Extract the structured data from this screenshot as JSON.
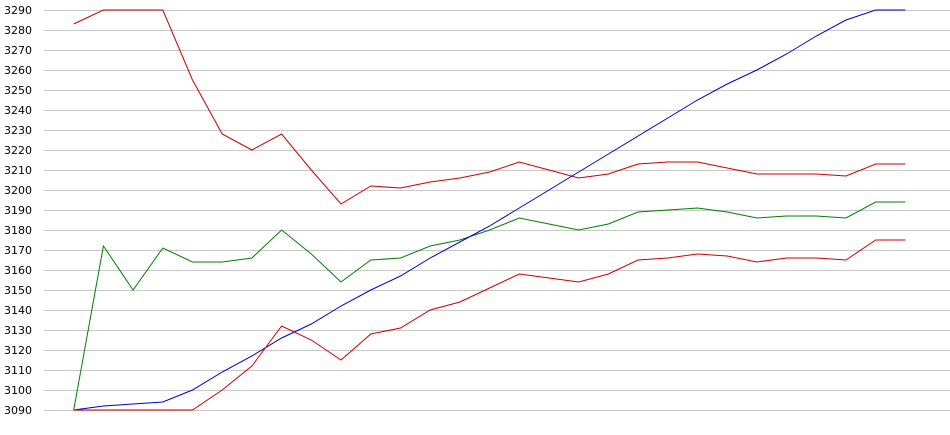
{
  "chart_data": {
    "type": "line",
    "title": "",
    "xlabel": "",
    "ylabel": "",
    "ylim": [
      3090,
      3290
    ],
    "yticks": [
      3090,
      3100,
      3110,
      3120,
      3130,
      3140,
      3150,
      3160,
      3170,
      3180,
      3190,
      3200,
      3210,
      3220,
      3230,
      3240,
      3250,
      3260,
      3270,
      3280,
      3290
    ],
    "grid": true,
    "legend": "none",
    "x": [
      1,
      2,
      3,
      4,
      5,
      6,
      7,
      8,
      9,
      10,
      11,
      12,
      13,
      14,
      15,
      16,
      17,
      18,
      19,
      20,
      21,
      22,
      23,
      24,
      25,
      26,
      27,
      28,
      29
    ],
    "xlim": [
      0,
      30.5
    ],
    "series": [
      {
        "color": "#cc0000",
        "values": [
          3283,
          3290,
          3290,
          3290,
          3255,
          3228,
          3220,
          3228,
          3210,
          3193,
          3202,
          3201,
          3204,
          3206,
          3209,
          3214,
          3210,
          3206,
          3208,
          3213,
          3214,
          3214,
          3211,
          3208,
          3208,
          3208,
          3207,
          3213,
          3213
        ]
      },
      {
        "color": "#008000",
        "values": [
          3090,
          3172,
          3150,
          3171,
          3164,
          3164,
          3166,
          3180,
          3168,
          3154,
          3165,
          3166,
          3172,
          3175,
          3180,
          3186,
          3183,
          3180,
          3183,
          3189,
          3190,
          3191,
          3189,
          3186,
          3187,
          3187,
          3186,
          3194,
          3194
        ]
      },
      {
        "color": "#0000cc",
        "values": [
          3090,
          3092,
          3093,
          3094,
          3100,
          3109,
          3117,
          3126,
          3133,
          3142,
          3150,
          3157,
          3166,
          3174,
          3182,
          3191,
          3200,
          3209,
          3218,
          3227,
          3236,
          3245,
          3253,
          3260,
          3268,
          3277,
          3285,
          3290,
          3290
        ]
      },
      {
        "color": "#cc0000",
        "values": [
          3090,
          3090,
          3090,
          3090,
          3090,
          3100,
          3112,
          3132,
          3125,
          3115,
          3128,
          3131,
          3140,
          3144,
          3151,
          3158,
          3156,
          3154,
          3158,
          3165,
          3166,
          3168,
          3167,
          3164,
          3166,
          3166,
          3165,
          3175,
          3175
        ]
      }
    ]
  }
}
